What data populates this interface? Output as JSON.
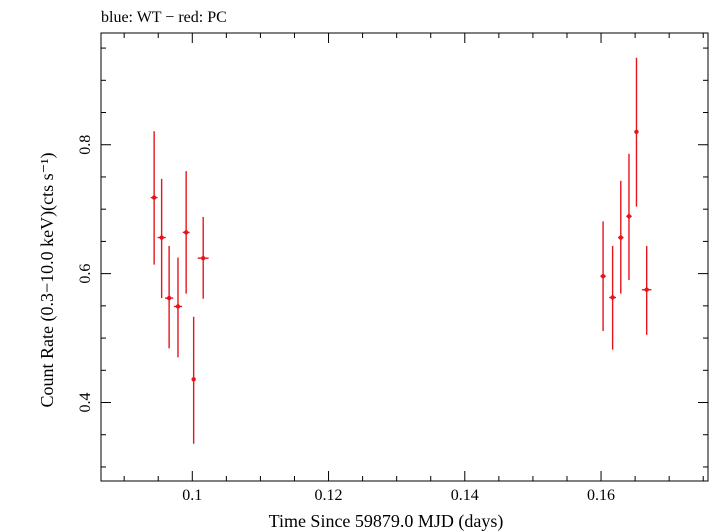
{
  "chart_data": {
    "type": "scatter",
    "title": "blue: WT − red: PC",
    "xlabel": "Time Since 59879.0 MJD (days)",
    "ylabel": "Count Rate (0.3−10.0 keV)(cts s⁻¹)",
    "xlim": [
      0.0866,
      0.1757
    ],
    "ylim": [
      0.2782,
      0.9734
    ],
    "xticks": [
      {
        "value": 0.1,
        "label": "0.1"
      },
      {
        "value": 0.12,
        "label": "0.12"
      },
      {
        "value": 0.14,
        "label": "0.14"
      },
      {
        "value": 0.16,
        "label": "0.16"
      }
    ],
    "yticks": [
      {
        "value": 0.4,
        "label": "0.4"
      },
      {
        "value": 0.6,
        "label": "0.6"
      },
      {
        "value": 0.8,
        "label": "0.8"
      }
    ],
    "x_minor_step": 0.005,
    "y_minor_step": 0.05,
    "grid": false,
    "series": [
      {
        "name": "PC",
        "color": "#e8141b",
        "points": [
          {
            "x": 0.0944,
            "xerr": 0.0005,
            "y": 0.718,
            "ylo": 0.614,
            "yhi": 0.821
          },
          {
            "x": 0.0955,
            "xerr": 0.0006,
            "y": 0.656,
            "ylo": 0.562,
            "yhi": 0.747
          },
          {
            "x": 0.0966,
            "xerr": 0.0006,
            "y": 0.562,
            "ylo": 0.484,
            "yhi": 0.643
          },
          {
            "x": 0.0979,
            "xerr": 0.0006,
            "y": 0.549,
            "ylo": 0.47,
            "yhi": 0.625
          },
          {
            "x": 0.0991,
            "xerr": 0.0005,
            "y": 0.664,
            "ylo": 0.569,
            "yhi": 0.759
          },
          {
            "x": 0.1002,
            "xerr": 0.0002,
            "y": 0.436,
            "ylo": 0.336,
            "yhi": 0.533
          },
          {
            "x": 0.1016,
            "xerr": 0.0008,
            "y": 0.624,
            "ylo": 0.561,
            "yhi": 0.688
          },
          {
            "x": 0.1603,
            "xerr": 0.0004,
            "y": 0.596,
            "ylo": 0.511,
            "yhi": 0.681
          },
          {
            "x": 0.1617,
            "xerr": 0.0005,
            "y": 0.563,
            "ylo": 0.482,
            "yhi": 0.643
          },
          {
            "x": 0.1629,
            "xerr": 0.0004,
            "y": 0.656,
            "ylo": 0.569,
            "yhi": 0.744
          },
          {
            "x": 0.1641,
            "xerr": 0.0004,
            "y": 0.689,
            "ylo": 0.59,
            "yhi": 0.786
          },
          {
            "x": 0.1652,
            "xerr": 0.0003,
            "y": 0.82,
            "ylo": 0.704,
            "yhi": 0.935
          },
          {
            "x": 0.1667,
            "xerr": 0.0007,
            "y": 0.575,
            "ylo": 0.505,
            "yhi": 0.643
          }
        ]
      }
    ]
  }
}
